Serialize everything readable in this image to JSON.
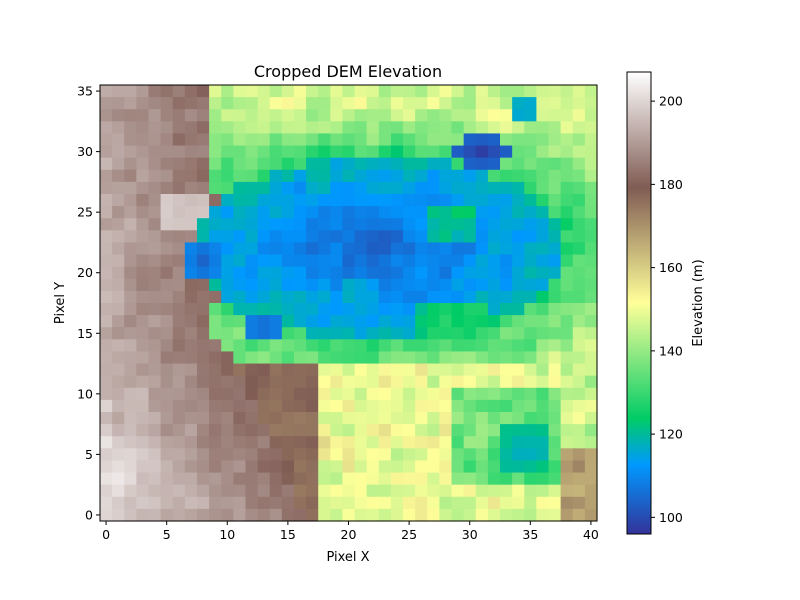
{
  "chart_data": {
    "type": "heatmap",
    "title": "Cropped DEM Elevation",
    "xlabel": "Pixel X",
    "ylabel": "Pixel Y",
    "colorbar_label": "Elevation (m)",
    "colormap": "terrain",
    "grid": false,
    "x_range": [
      -0.5,
      40.5
    ],
    "y_range": [
      35.5,
      -0.5
    ],
    "x_ticks": [
      0,
      5,
      10,
      15,
      20,
      25,
      30,
      35,
      40
    ],
    "y_ticks": [
      0,
      5,
      10,
      15,
      20,
      25,
      30,
      35
    ],
    "value_range": [
      96,
      207
    ],
    "colorbar_ticks": [
      100,
      120,
      140,
      160,
      180,
      200
    ],
    "grid_size": {
      "cols": 41,
      "rows": 36
    },
    "regions": [
      {
        "kind": "lake_core",
        "center": [
          22.5,
          13.0
        ],
        "radii": [
          15.5,
          7.5
        ],
        "min_elevation": 104,
        "edge_elevation": 118
      },
      {
        "kind": "depression",
        "center": [
          31.0,
          5.0
        ],
        "radii": [
          2.5,
          1.2
        ],
        "elevation": 98
      },
      {
        "kind": "depression",
        "center": [
          8.0,
          14.0
        ],
        "radii": [
          1.5,
          2.0
        ],
        "elevation": 104
      },
      {
        "kind": "depression",
        "center": [
          13.0,
          19.5
        ],
        "radii": [
          2.0,
          1.2
        ],
        "elevation": 104
      },
      {
        "kind": "pond",
        "center": [
          34.5,
          29.5
        ],
        "radii": [
          2.5,
          2.5
        ],
        "elevation": 116
      },
      {
        "kind": "pond",
        "center": [
          34.5,
          1.5
        ],
        "radii": [
          1.5,
          1.2
        ],
        "elevation": 113
      },
      {
        "kind": "ridge",
        "x_range": [
          0,
          16
        ],
        "elevation_range": [
          178,
          205
        ]
      },
      {
        "kind": "plateau",
        "x_range": [
          16,
          37
        ],
        "y_range": [
          23,
          35
        ],
        "elevation_range": [
          135,
          165
        ]
      }
    ]
  }
}
